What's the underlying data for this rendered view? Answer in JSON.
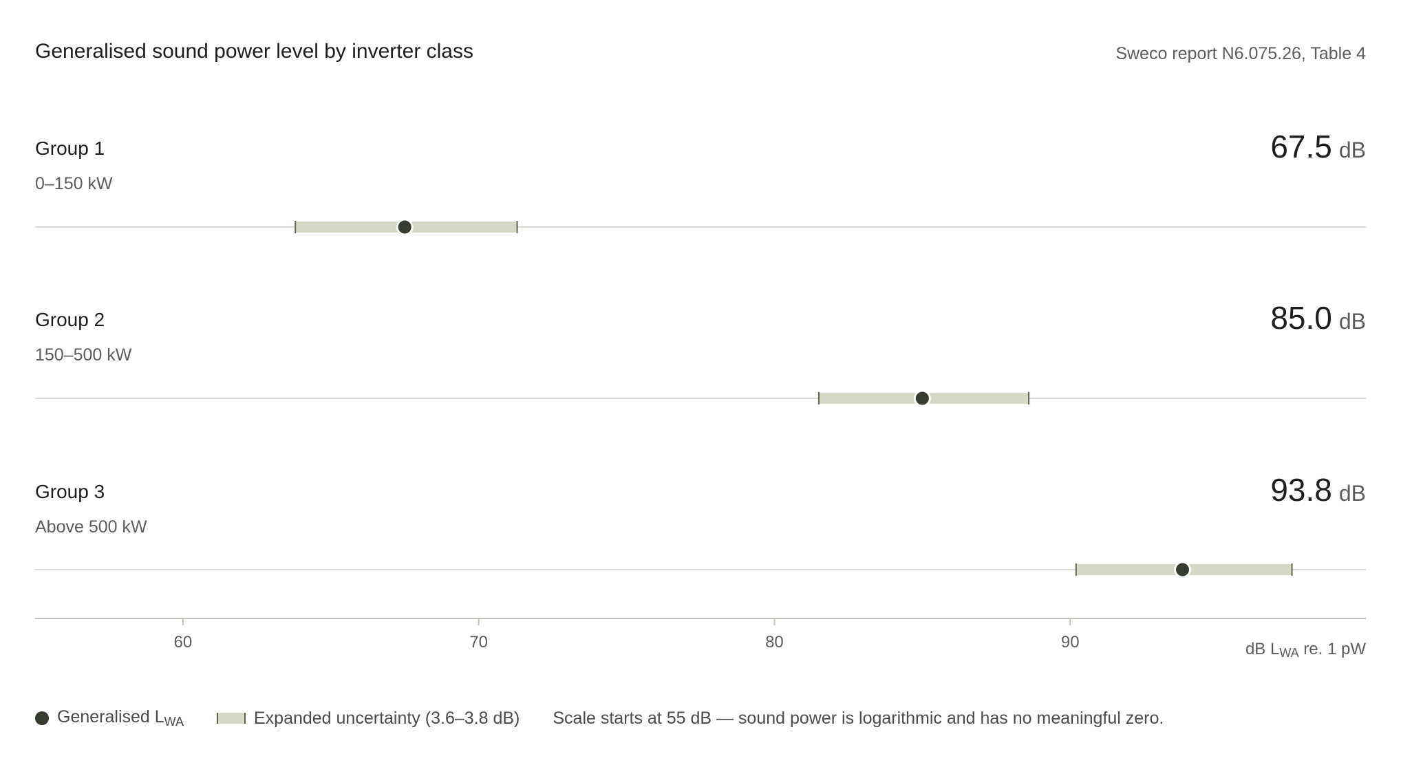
{
  "header": {
    "title": "Generalised sound power level by inverter class",
    "source": "Sweco report N6.075.26, Table 4"
  },
  "legend": {
    "marker_label": "Generalised L",
    "marker_label_sub": "WA",
    "band_label": "Expanded uncertainty (3.6–3.8 dB)",
    "note": "Scale starts at 55 dB — sound power is logarithmic and has no meaningful zero."
  },
  "axis": {
    "unit_prefix": "dB L",
    "unit_sub": "WA",
    "unit_suffix": " re. 1 pW"
  },
  "colors": {
    "marker": "#363d30",
    "band": "#d4d8c4",
    "band_cap": "#5f6753",
    "gridline": "#d9dbd3",
    "axis": "#bfc2b8"
  },
  "chart_data": {
    "type": "dot-with-error-bar",
    "title": "Generalised sound power level by inverter class",
    "xlabel": "dB LWA re. 1 pW",
    "xlim": [
      55,
      100
    ],
    "xticks": [
      60,
      70,
      80,
      90
    ],
    "grid": false,
    "legend_position": "bottom-left",
    "unit": "dB",
    "groups": [
      {
        "name": "Group 1",
        "range": "0–150 kW",
        "value": 67.5,
        "value_label": "67.5",
        "low": 63.8,
        "high": 71.3
      },
      {
        "name": "Group 2",
        "range": "150–500 kW",
        "value": 85.0,
        "value_label": "85.0",
        "low": 81.5,
        "high": 88.6
      },
      {
        "name": "Group 3",
        "range": "Above 500 kW",
        "value": 93.8,
        "value_label": "93.8",
        "low": 90.2,
        "high": 97.5
      }
    ]
  }
}
